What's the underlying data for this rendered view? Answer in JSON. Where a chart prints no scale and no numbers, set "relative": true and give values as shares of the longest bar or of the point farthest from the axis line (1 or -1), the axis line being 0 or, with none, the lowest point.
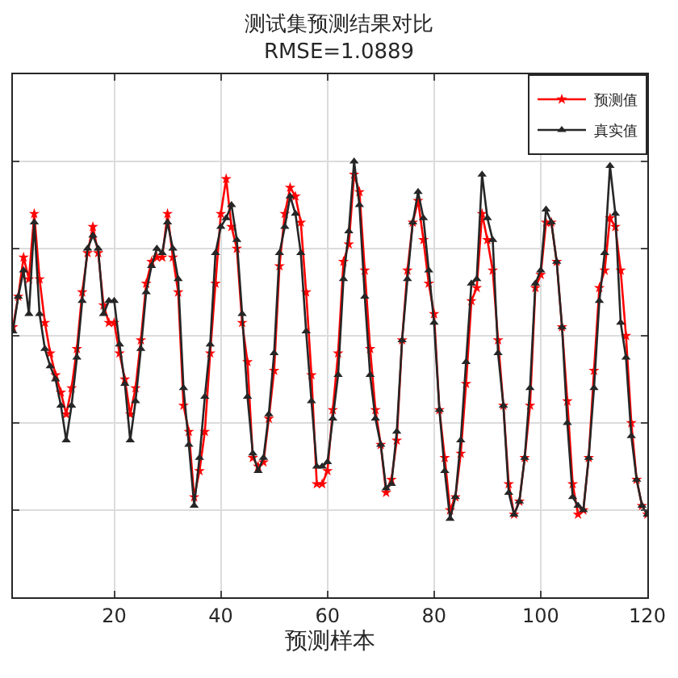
{
  "chart_data": {
    "type": "line",
    "title": "测试集预测结果对比",
    "subtitle": "RMSE=1.0889",
    "xlabel": "预测样本",
    "relative": true,
    "x": [
      1,
      2,
      3,
      4,
      5,
      6,
      7,
      8,
      9,
      10,
      11,
      12,
      13,
      14,
      15,
      16,
      17,
      18,
      19,
      20,
      21,
      22,
      23,
      24,
      25,
      26,
      27,
      28,
      29,
      30,
      31,
      32,
      33,
      34,
      35,
      36,
      37,
      38,
      39,
      40,
      41,
      42,
      43,
      44,
      45,
      46,
      47,
      48,
      49,
      50,
      51,
      52,
      53,
      54,
      55,
      56,
      57,
      58,
      59,
      60,
      61,
      62,
      63,
      64,
      65,
      66,
      67,
      68,
      69,
      70,
      71,
      72,
      73,
      74,
      75,
      76,
      77,
      78,
      79,
      80,
      81,
      82,
      83,
      84,
      85,
      86,
      87,
      88,
      89,
      90,
      91,
      92,
      93,
      94,
      95,
      96,
      97,
      98,
      99,
      100,
      101,
      102,
      103,
      104,
      105,
      106,
      107,
      108,
      109,
      110,
      111,
      112,
      113,
      114,
      115,
      116,
      117,
      118,
      119,
      120
    ],
    "xlim": [
      1,
      120
    ],
    "xticks": [
      20,
      40,
      60,
      80,
      100,
      120
    ],
    "grid": true,
    "legend": "top right",
    "line_style": "solid",
    "series": [
      {
        "name": "预测值",
        "color": "#ff0000",
        "marker": "star",
        "values": [
          0.62,
          0.69,
          0.78,
          0.73,
          0.88,
          0.73,
          0.63,
          0.56,
          0.51,
          0.47,
          0.42,
          0.48,
          0.57,
          0.7,
          0.79,
          0.85,
          0.79,
          0.67,
          0.63,
          0.63,
          0.56,
          0.5,
          0.42,
          0.48,
          0.59,
          0.72,
          0.77,
          0.78,
          0.78,
          0.88,
          0.78,
          0.7,
          0.44,
          0.38,
          0.23,
          0.29,
          0.38,
          0.56,
          0.72,
          0.88,
          0.96,
          0.85,
          0.8,
          0.63,
          0.54,
          0.32,
          0.3,
          0.31,
          0.41,
          0.52,
          0.76,
          0.88,
          0.94,
          0.92,
          0.86,
          0.7,
          0.51,
          0.26,
          0.26,
          0.29,
          0.43,
          0.56,
          0.77,
          0.81,
          0.97,
          0.93,
          0.75,
          0.57,
          0.43,
          0.35,
          0.24,
          0.27,
          0.36,
          0.59,
          0.75,
          0.86,
          0.91,
          0.82,
          0.72,
          0.65,
          0.43,
          0.32,
          0.2,
          0.23,
          0.33,
          0.49,
          0.68,
          0.71,
          0.88,
          0.82,
          0.75,
          0.59,
          0.44,
          0.26,
          0.19,
          0.22,
          0.32,
          0.44,
          0.71,
          0.74,
          0.86,
          0.86,
          0.77,
          0.62,
          0.45,
          0.26,
          0.19,
          0.2,
          0.32,
          0.52,
          0.71,
          0.75,
          0.87,
          0.85,
          0.75,
          0.6,
          0.4,
          0.27,
          0.21,
          0.19
        ]
      },
      {
        "name": "真实值",
        "color": "#262626",
        "marker": "triangle",
        "values": [
          0.61,
          0.69,
          0.75,
          0.65,
          0.86,
          0.65,
          0.57,
          0.53,
          0.5,
          0.44,
          0.36,
          0.44,
          0.55,
          0.68,
          0.8,
          0.83,
          0.8,
          0.65,
          0.68,
          0.68,
          0.58,
          0.49,
          0.36,
          0.45,
          0.57,
          0.7,
          0.76,
          0.8,
          0.79,
          0.86,
          0.8,
          0.73,
          0.48,
          0.35,
          0.21,
          0.32,
          0.46,
          0.58,
          0.79,
          0.85,
          0.87,
          0.9,
          0.82,
          0.65,
          0.46,
          0.33,
          0.29,
          0.32,
          0.42,
          0.56,
          0.79,
          0.85,
          0.92,
          0.88,
          0.79,
          0.61,
          0.45,
          0.3,
          0.3,
          0.31,
          0.41,
          0.51,
          0.73,
          0.84,
          1,
          0.9,
          0.69,
          0.51,
          0.41,
          0.35,
          0.25,
          0.26,
          0.38,
          0.59,
          0.73,
          0.86,
          0.93,
          0.87,
          0.75,
          0.63,
          0.43,
          0.29,
          0.18,
          0.23,
          0.36,
          0.54,
          0.72,
          0.73,
          0.97,
          0.87,
          0.82,
          0.56,
          0.44,
          0.24,
          0.19,
          0.22,
          0.32,
          0.48,
          0.72,
          0.75,
          0.89,
          0.86,
          0.77,
          0.62,
          0.4,
          0.23,
          0.21,
          0.2,
          0.32,
          0.48,
          0.68,
          0.79,
          0.99,
          0.88,
          0.63,
          0.55,
          0.37,
          0.27,
          0.21,
          0.19
        ]
      }
    ]
  }
}
